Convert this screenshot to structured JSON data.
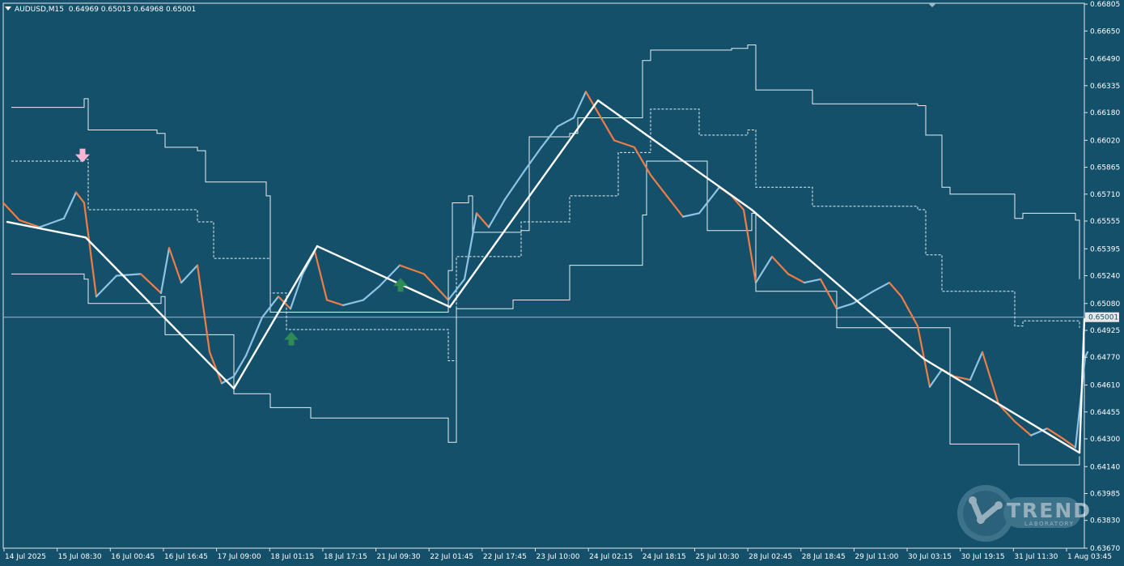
{
  "chart_data": {
    "type": "line",
    "title": "AUDUSD,M15",
    "ohlc_readout": "0.64969 0.65013 0.64968 0.65001",
    "y_range": [
      0.6367,
      0.6681
    ],
    "y_ticks": [
      "0.66805",
      "0.66650",
      "0.66490",
      "0.66335",
      "0.66180",
      "0.66020",
      "0.65865",
      "0.65710",
      "0.65555",
      "0.65395",
      "0.65240",
      "0.65080",
      "0.65001",
      "0.64925",
      "0.64770",
      "0.64610",
      "0.64455",
      "0.64300",
      "0.64140",
      "0.63985",
      "0.63830",
      "0.63670"
    ],
    "current_price": "0.65001",
    "x_ticks": [
      "14 Jul 2025",
      "15 Jul 08:30",
      "16 Jul 00:45",
      "16 Jul 16:45",
      "17 Jul 09:00",
      "18 Jul 01:15",
      "18 Jul 17:15",
      "21 Jul 09:30",
      "22 Jul 01:45",
      "22 Jul 17:45",
      "23 Jul 10:00",
      "24 Jul 02:15",
      "24 Jul 18:15",
      "25 Jul 10:30",
      "28 Jul 02:45",
      "28 Jul 18:45",
      "29 Jul 11:00",
      "30 Jul 03:15",
      "30 Jul 19:15",
      "31 Jul 11:30",
      "1 Aug 03:45"
    ],
    "price_series": {
      "name": "",
      "x": [
        0,
        20,
        45,
        75,
        90,
        100,
        115,
        140,
        170,
        195,
        205,
        220,
        240,
        255,
        270,
        285,
        300,
        320,
        340,
        355,
        370,
        385,
        400,
        420,
        445,
        465,
        490,
        520,
        550,
        570,
        585,
        600,
        620,
        645,
        665,
        685,
        705,
        720,
        735,
        755,
        780,
        800,
        820,
        840,
        860,
        885,
        900,
        915,
        930,
        950,
        970,
        990,
        1010,
        1030,
        1050,
        1075,
        1095,
        1110,
        1130,
        1145,
        1160,
        1175,
        1195,
        1210,
        1230,
        1250,
        1270,
        1290,
        1310,
        1325,
        1332,
        1337,
        1340
      ],
      "y": [
        0.6566,
        0.6556,
        0.6552,
        0.6557,
        0.6572,
        0.6566,
        0.6512,
        0.6524,
        0.6525,
        0.6514,
        0.654,
        0.652,
        0.653,
        0.648,
        0.6462,
        0.6466,
        0.6478,
        0.65,
        0.6512,
        0.6505,
        0.6525,
        0.6538,
        0.651,
        0.6507,
        0.651,
        0.6518,
        0.653,
        0.6525,
        0.651,
        0.6522,
        0.656,
        0.6552,
        0.6568,
        0.6585,
        0.6598,
        0.661,
        0.6615,
        0.663,
        0.6618,
        0.6602,
        0.6598,
        0.6582,
        0.657,
        0.6558,
        0.656,
        0.6575,
        0.657,
        0.6562,
        0.652,
        0.6535,
        0.6525,
        0.652,
        0.6522,
        0.6505,
        0.6508,
        0.6515,
        0.652,
        0.6512,
        0.6495,
        0.646,
        0.647,
        0.6466,
        0.6464,
        0.648,
        0.645,
        0.644,
        0.6432,
        0.6436,
        0.643,
        0.6425,
        0.6455,
        0.6477,
        0.648
      ]
    },
    "zigzag": {
      "x": [
        5,
        102,
        285,
        388,
        552,
        735,
        925,
        1138,
        1330,
        1336
      ],
      "y": [
        0.6555,
        0.6546,
        0.6459,
        0.6541,
        0.6506,
        0.6625,
        0.6562,
        0.6476,
        0.6422,
        0.6499
      ]
    },
    "channel_upper": {
      "x": [
        10,
        100,
        105,
        190,
        200,
        240,
        250,
        325,
        330,
        550,
        555,
        575,
        580,
        640,
        650,
        700,
        710,
        790,
        800,
        900,
        920,
        930,
        1000,
        1130,
        1140,
        1160,
        1170,
        1250,
        1260,
        1325,
        1330
      ],
      "y": [
        0.6621,
        0.6626,
        0.6608,
        0.6606,
        0.6598,
        0.6596,
        0.6578,
        0.657,
        0.6503,
        0.6527,
        0.6566,
        0.657,
        0.6549,
        0.655,
        0.6604,
        0.6606,
        0.6615,
        0.6648,
        0.6654,
        0.6655,
        0.6657,
        0.6631,
        0.6623,
        0.6622,
        0.6605,
        0.6575,
        0.6571,
        0.6557,
        0.656,
        0.6556,
        0.6522
      ]
    },
    "channel_mid": {
      "x": [
        10,
        100,
        105,
        200,
        240,
        260,
        330,
        350,
        550,
        560,
        640,
        700,
        760,
        800,
        860,
        920,
        930,
        1000,
        1130,
        1140,
        1160,
        1250,
        1260,
        1330
      ],
      "y": [
        0.659,
        0.6591,
        0.6562,
        0.6562,
        0.6555,
        0.6534,
        0.6514,
        0.6493,
        0.6475,
        0.6535,
        0.6555,
        0.657,
        0.6595,
        0.662,
        0.6605,
        0.6608,
        0.6575,
        0.6564,
        0.6562,
        0.6536,
        0.6515,
        0.6495,
        0.6498,
        0.6494
      ]
    },
    "channel_lower": {
      "x": [
        10,
        100,
        105,
        195,
        200,
        285,
        330,
        380,
        550,
        560,
        630,
        700,
        790,
        795,
        870,
        925,
        930,
        1030,
        1130,
        1170,
        1255,
        1330
      ],
      "y": [
        0.6525,
        0.6522,
        0.6508,
        0.6512,
        0.649,
        0.6456,
        0.6448,
        0.6442,
        0.6428,
        0.6505,
        0.651,
        0.653,
        0.6559,
        0.659,
        0.655,
        0.656,
        0.6515,
        0.6494,
        0.6494,
        0.6427,
        0.6415,
        0.642
      ]
    },
    "markers": [
      {
        "name": "sell-arrow",
        "x": 98,
        "y": 0.6593,
        "direction": "down",
        "color": "#f8b6d2"
      },
      {
        "name": "buy-arrow",
        "x": 356,
        "y": 0.6488,
        "direction": "up",
        "color": "#2f8a55"
      },
      {
        "name": "buy-arrow",
        "x": 491,
        "y": 0.6519,
        "direction": "up",
        "color": "#2f8a55"
      }
    ],
    "colors": {
      "background": "#14506a",
      "candle_up": "#8ec3e6",
      "candle_down": "#f07d45",
      "lines": "#ffffff"
    }
  },
  "watermark": {
    "word": "TREND",
    "sub": "LABORATORY"
  }
}
